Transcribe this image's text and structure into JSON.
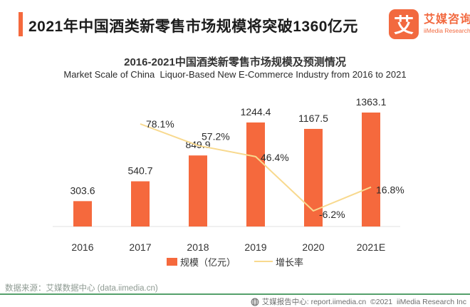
{
  "header": {
    "title": "2021年中国酒类新零售市场规模将突破1360亿元",
    "accent_color": "#F5693D"
  },
  "logo": {
    "mark": "艾",
    "name_cn": "艾媒咨询",
    "name_en": "iiMedia Research"
  },
  "chart_data": {
    "type": "bar+line",
    "title": "2016-2021中国酒类新零售市场规模及预测情况",
    "subtitle": "Market Scale of China  Liquor-Based New E-Commerce Industry from 2016 to 2021",
    "categories": [
      "2016",
      "2017",
      "2018",
      "2019",
      "2020",
      "2021E"
    ],
    "series": [
      {
        "name": "规模（亿元）",
        "type": "bar",
        "color": "#F5693D",
        "values": [
          303.6,
          540.7,
          849.9,
          1244.4,
          1167.5,
          1363.1
        ]
      },
      {
        "name": "增长率",
        "type": "line",
        "color": "#F8D98E",
        "unit": "%",
        "values": [
          null,
          78.1,
          57.2,
          46.4,
          -6.2,
          16.8
        ]
      }
    ],
    "axis_color": "#E2E2E2",
    "grid": "off",
    "legend_position": "bottom",
    "ylim_bar": [
      0,
      1500
    ],
    "ylim_rate": [
      -20,
      90
    ]
  },
  "source": {
    "text": "数据来源：艾媒数据中心 (data.iimedia.cn)"
  },
  "footer": {
    "text": "艾媒报告中心: report.iimedia.cn  ©2021  iiMedia Research Inc"
  }
}
